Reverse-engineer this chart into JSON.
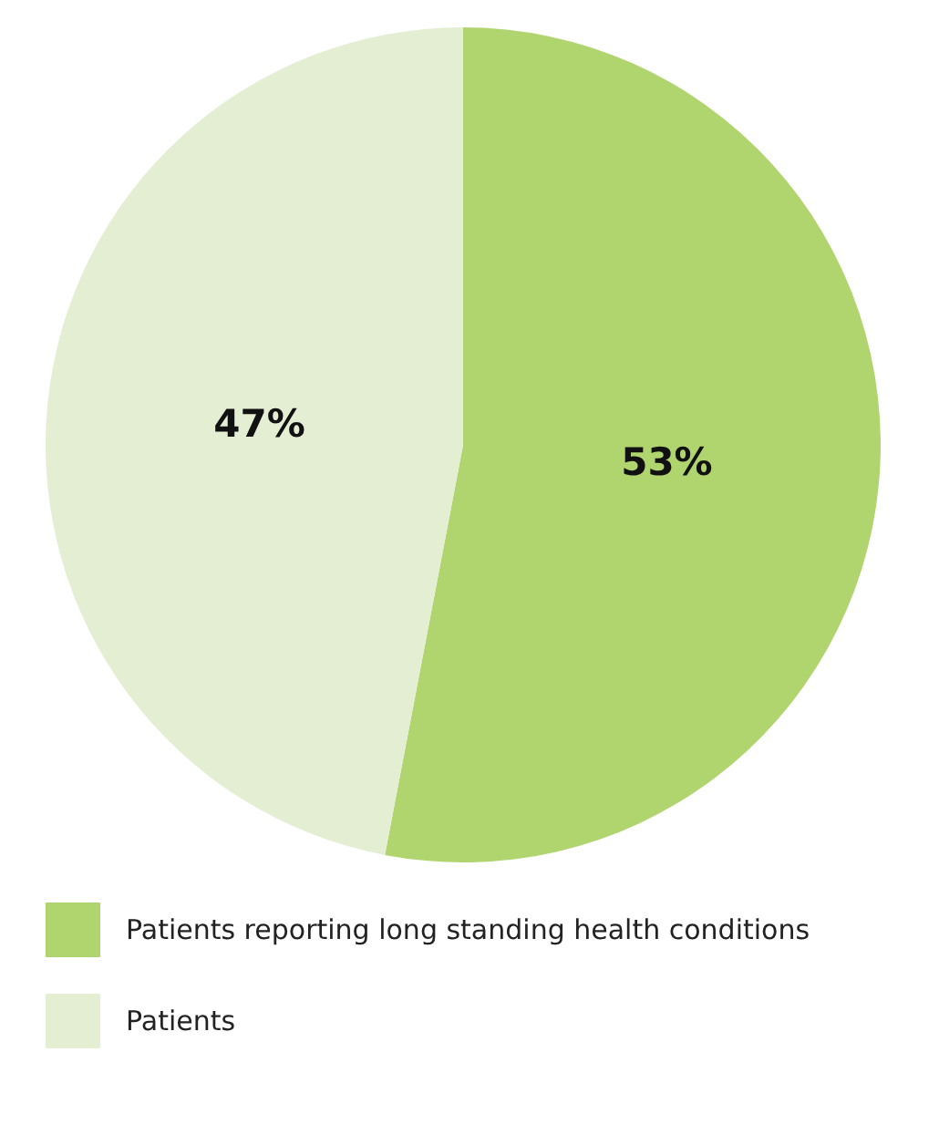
{
  "chart_data": {
    "type": "pie",
    "categories": [
      "Patients reporting long standing health conditions",
      "Patients"
    ],
    "values": [
      53,
      47
    ],
    "colors": [
      "#b1d56e",
      "#e3eed3"
    ],
    "value_labels": [
      "53%",
      "47%"
    ],
    "legend": "bottom"
  }
}
